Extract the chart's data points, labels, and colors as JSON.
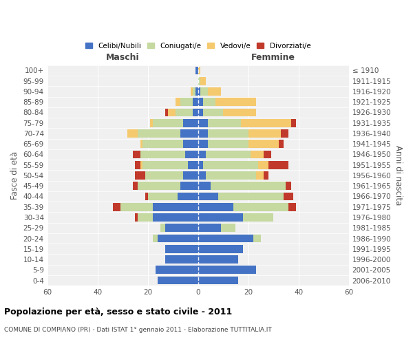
{
  "age_groups": [
    "0-4",
    "5-9",
    "10-14",
    "15-19",
    "20-24",
    "25-29",
    "30-34",
    "35-39",
    "40-44",
    "45-49",
    "50-54",
    "55-59",
    "60-64",
    "65-69",
    "70-74",
    "75-79",
    "80-84",
    "85-89",
    "90-94",
    "95-99",
    "100+"
  ],
  "birth_years": [
    "2006-2010",
    "2001-2005",
    "1996-2000",
    "1991-1995",
    "1986-1990",
    "1981-1985",
    "1976-1980",
    "1971-1975",
    "1966-1970",
    "1961-1965",
    "1956-1960",
    "1951-1955",
    "1946-1950",
    "1941-1945",
    "1936-1940",
    "1931-1935",
    "1926-1930",
    "1921-1925",
    "1916-1920",
    "1911-1915",
    "≤ 1910"
  ],
  "maschi": {
    "celibi": [
      16,
      17,
      13,
      13,
      16,
      13,
      18,
      18,
      8,
      7,
      6,
      4,
      5,
      6,
      7,
      6,
      2,
      2,
      1,
      0,
      1
    ],
    "coniugati": [
      0,
      0,
      0,
      0,
      2,
      2,
      6,
      13,
      12,
      17,
      15,
      18,
      18,
      16,
      17,
      12,
      7,
      5,
      1,
      0,
      0
    ],
    "vedovi": [
      0,
      0,
      0,
      0,
      0,
      0,
      0,
      0,
      0,
      0,
      0,
      1,
      0,
      1,
      4,
      1,
      3,
      2,
      1,
      0,
      0
    ],
    "divorziati": [
      0,
      0,
      0,
      0,
      0,
      0,
      1,
      3,
      1,
      2,
      4,
      2,
      3,
      0,
      0,
      0,
      1,
      0,
      0,
      0,
      0
    ]
  },
  "femmine": {
    "nubili": [
      16,
      23,
      16,
      18,
      22,
      9,
      18,
      14,
      8,
      5,
      3,
      2,
      3,
      4,
      4,
      4,
      2,
      2,
      1,
      0,
      0
    ],
    "coniugate": [
      0,
      0,
      0,
      0,
      3,
      6,
      12,
      22,
      26,
      30,
      20,
      22,
      18,
      16,
      16,
      13,
      8,
      5,
      3,
      1,
      0
    ],
    "vedove": [
      0,
      0,
      0,
      0,
      0,
      0,
      0,
      0,
      0,
      0,
      3,
      4,
      5,
      12,
      13,
      20,
      13,
      16,
      5,
      2,
      1
    ],
    "divorziate": [
      0,
      0,
      0,
      0,
      0,
      0,
      0,
      3,
      4,
      2,
      2,
      8,
      3,
      2,
      3,
      2,
      0,
      0,
      0,
      0,
      0
    ]
  },
  "colors": {
    "celibi": "#4472c4",
    "coniugati": "#c5d9a0",
    "vedovi": "#f5c96e",
    "divorziati": "#c0392b"
  },
  "xlim": 60,
  "title": "Popolazione per età, sesso e stato civile - 2011",
  "subtitle": "COMUNE DI COMPIANO (PR) - Dati ISTAT 1° gennaio 2011 - Elaborazione TUTTITALIA.IT",
  "ylabel_left": "Fasce di età",
  "ylabel_right": "Anni di nascita",
  "maschi_label": "Maschi",
  "femmine_label": "Femmine",
  "legend_labels": [
    "Celibi/Nubili",
    "Coniugati/e",
    "Vedovi/e",
    "Divorziati/e"
  ],
  "bg_color": "#f0f0f0",
  "grid_color": "#cccccc"
}
